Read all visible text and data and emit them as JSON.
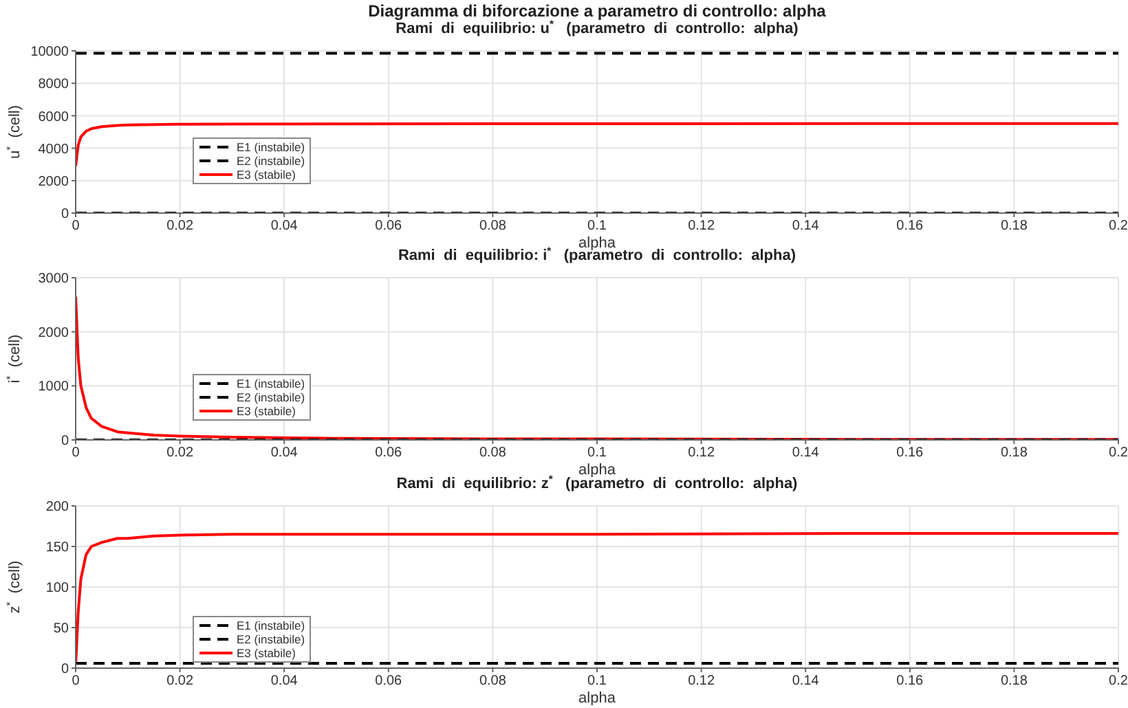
{
  "chart_data": [
    {
      "type": "line",
      "title": "Rami  di  equilibrio: u$^{*}$   (parametro  di  controllo:  alpha)",
      "annotations": [
        "Diagramma di biforcazione a parametro di controllo: alpha"
      ],
      "xlabel": "alpha",
      "ylabel": "u$^{*}$  (cell)",
      "x": [
        0,
        0.0005,
        0.001,
        0.002,
        0.003,
        0.005,
        0.008,
        0.01,
        0.015,
        0.02,
        0.03,
        0.05,
        0.08,
        0.1,
        0.15,
        0.2
      ],
      "series": [
        {
          "name": "E1 (instabile)",
          "color": "#000000",
          "line_style": "dashed",
          "values": [
            9850,
            9850,
            9850,
            9850,
            9850,
            9850,
            9850,
            9850,
            9850,
            9850,
            9850,
            9850,
            9850,
            9850,
            9850,
            9850
          ]
        },
        {
          "name": "E2 (instabile)",
          "color": "#000000",
          "line_style": "dashed",
          "values": [
            0,
            0,
            0,
            0,
            0,
            0,
            0,
            0,
            0,
            0,
            0,
            0,
            0,
            0,
            0,
            0
          ]
        },
        {
          "name": "E3 (stabile)",
          "color": "#ff0000",
          "line_style": "solid",
          "values": [
            2900,
            4200,
            4700,
            5050,
            5200,
            5330,
            5400,
            5430,
            5460,
            5480,
            5490,
            5500,
            5510,
            5510,
            5515,
            5515
          ]
        }
      ],
      "xlim": [
        0,
        0.2
      ],
      "xticks": [
        0,
        0.02,
        0.04,
        0.06,
        0.08,
        0.1,
        0.12,
        0.14,
        0.16,
        0.18,
        0.2
      ],
      "ylim": [
        0,
        10000
      ],
      "yticks": [
        0,
        2000,
        4000,
        6000,
        8000,
        10000
      ],
      "grid": true,
      "legend": "left",
      "marker": "none"
    },
    {
      "type": "line",
      "title": "Rami  di  equilibrio: i$^{*}$   (parametro  di  controllo:  alpha)",
      "xlabel": "alpha",
      "ylabel": "i$^{*}$  (cell)",
      "x": [
        0,
        0.0005,
        0.001,
        0.002,
        0.003,
        0.005,
        0.008,
        0.01,
        0.015,
        0.02,
        0.03,
        0.05,
        0.08,
        0.1,
        0.15,
        0.2
      ],
      "series": [
        {
          "name": "E1 (instabile)",
          "color": "#000000",
          "line_style": "dashed",
          "values": [
            0,
            0,
            0,
            0,
            0,
            0,
            0,
            0,
            0,
            0,
            0,
            0,
            0,
            0,
            0,
            0
          ]
        },
        {
          "name": "E2 (instabile)",
          "color": "#000000",
          "line_style": "dashed",
          "values": [
            null,
            null,
            null,
            null,
            null,
            null,
            null,
            null,
            null,
            null,
            null,
            null,
            null,
            null,
            null,
            null
          ]
        },
        {
          "name": "E3 (stabile)",
          "color": "#ff0000",
          "line_style": "solid",
          "values": [
            2650,
            1500,
            1000,
            600,
            400,
            250,
            150,
            130,
            90,
            70,
            50,
            30,
            20,
            20,
            10,
            10
          ]
        }
      ],
      "xlim": [
        0,
        0.2
      ],
      "xticks": [
        0,
        0.02,
        0.04,
        0.06,
        0.08,
        0.1,
        0.12,
        0.14,
        0.16,
        0.18,
        0.2
      ],
      "ylim": [
        0,
        3000
      ],
      "yticks": [
        0,
        1000,
        2000,
        3000
      ],
      "grid": true,
      "legend": "left",
      "marker": "none"
    },
    {
      "type": "line",
      "title": "Rami  di  equilibrio: z$^{*}$   (parametro  di  controllo:  alpha)",
      "xlabel": "alpha",
      "ylabel": "z$^{*}$  (cell)",
      "x": [
        0,
        0.0005,
        0.001,
        0.002,
        0.003,
        0.005,
        0.008,
        0.01,
        0.015,
        0.02,
        0.03,
        0.05,
        0.08,
        0.1,
        0.15,
        0.2
      ],
      "series": [
        {
          "name": "E1 (instabile)",
          "color": "#000000",
          "line_style": "dashed",
          "values": [
            6,
            6,
            6,
            6,
            6,
            6,
            6,
            6,
            6,
            6,
            6,
            6,
            6,
            6,
            6,
            6
          ]
        },
        {
          "name": "E2 (instabile)",
          "color": "#000000",
          "line_style": "dashed",
          "values": [
            null,
            null,
            null,
            null,
            null,
            null,
            null,
            null,
            null,
            null,
            null,
            null,
            null,
            null,
            null,
            null
          ]
        },
        {
          "name": "E3 (stabile)",
          "color": "#ff0000",
          "line_style": "solid",
          "values": [
            5,
            70,
            110,
            140,
            150,
            155,
            160,
            160,
            163,
            164,
            165,
            165,
            165,
            165,
            166,
            166
          ]
        }
      ],
      "xlim": [
        0,
        0.2
      ],
      "xticks": [
        0,
        0.02,
        0.04,
        0.06,
        0.08,
        0.1,
        0.12,
        0.14,
        0.16,
        0.18,
        0.2
      ],
      "ylim": [
        0,
        200
      ],
      "yticks": [
        0,
        50,
        100,
        150,
        200
      ],
      "grid": true,
      "legend": "left",
      "marker": "none"
    }
  ]
}
